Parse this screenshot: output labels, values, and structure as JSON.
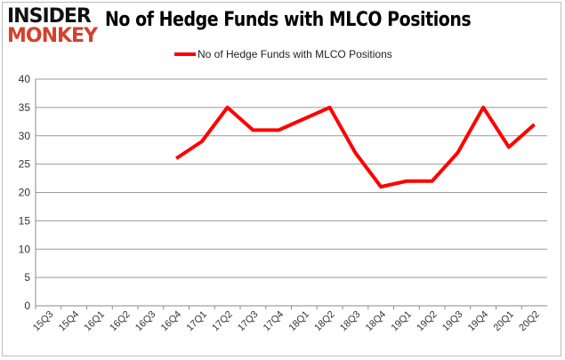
{
  "logo": {
    "line1": "INSIDER",
    "line2": "MONKEY"
  },
  "chart_data": {
    "type": "line",
    "title": "No of Hedge Funds with MLCO Positions",
    "categories": [
      "15Q3",
      "15Q4",
      "16Q1",
      "16Q2",
      "16Q3",
      "16Q4",
      "17Q1",
      "17Q2",
      "17Q3",
      "17Q4",
      "18Q1",
      "18Q2",
      "18Q3",
      "18Q4",
      "19Q1",
      "19Q2",
      "19Q3",
      "19Q4",
      "20Q1",
      "20Q2"
    ],
    "series": [
      {
        "name": "No of Hedge Funds with MLCO Positions",
        "color": "#ff0000",
        "values": [
          null,
          null,
          null,
          null,
          null,
          26,
          29,
          35,
          31,
          31,
          33,
          35,
          27,
          21,
          22,
          22,
          27,
          35,
          28,
          32
        ]
      }
    ],
    "ylim": [
      0,
      40
    ],
    "yticks": [
      0,
      5,
      10,
      15,
      20,
      25,
      30,
      35,
      40
    ],
    "grid": true,
    "legend": "top-center",
    "xlabel": "",
    "ylabel": ""
  }
}
